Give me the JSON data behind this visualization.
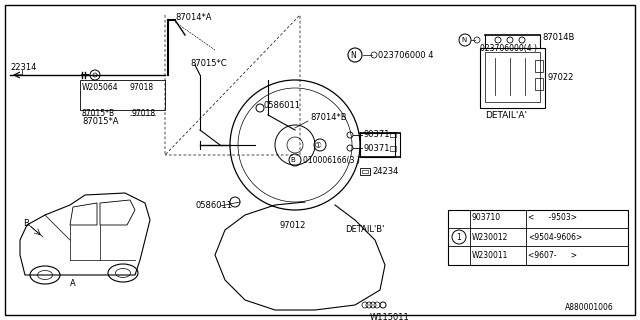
{
  "bg_color": "#ffffff",
  "line_color": "#000000",
  "figsize": [
    6.4,
    3.2
  ],
  "dpi": 100,
  "parts": {
    "p22314": "22314",
    "p87014A": "87014*A",
    "p87015C": "87015*C",
    "p87015B": "87015*B",
    "p87015A": "87015*A",
    "pW205064": "W205064",
    "p97018": "97018",
    "p0586011": "0586011",
    "p87014B_main": "87014*B",
    "p87014B_detail": "87014B",
    "pN1": "N",
    "p023706000_4": "023706000 4",
    "p023706000_4b": "023706000(4 )",
    "p90371D": "90371□",
    "p97022": "97022",
    "p97012": "97012",
    "p24234": "24234",
    "pI": "①",
    "pB": "B",
    "p010006166": "010006166(3 )",
    "pW115011": "W115011",
    "pDETAIL_A": "DETAIL'A'",
    "pDETAIL_B": "DETAIL'B'",
    "pA880001006": "A880001006",
    "table_r1c1": "903710",
    "table_r1c2": "<      -9503>",
    "table_r2c1": "W230012",
    "table_r2c2": "<9504-9606>",
    "table_r3c1": "W230011",
    "table_r3c2": "<9607-      >"
  }
}
